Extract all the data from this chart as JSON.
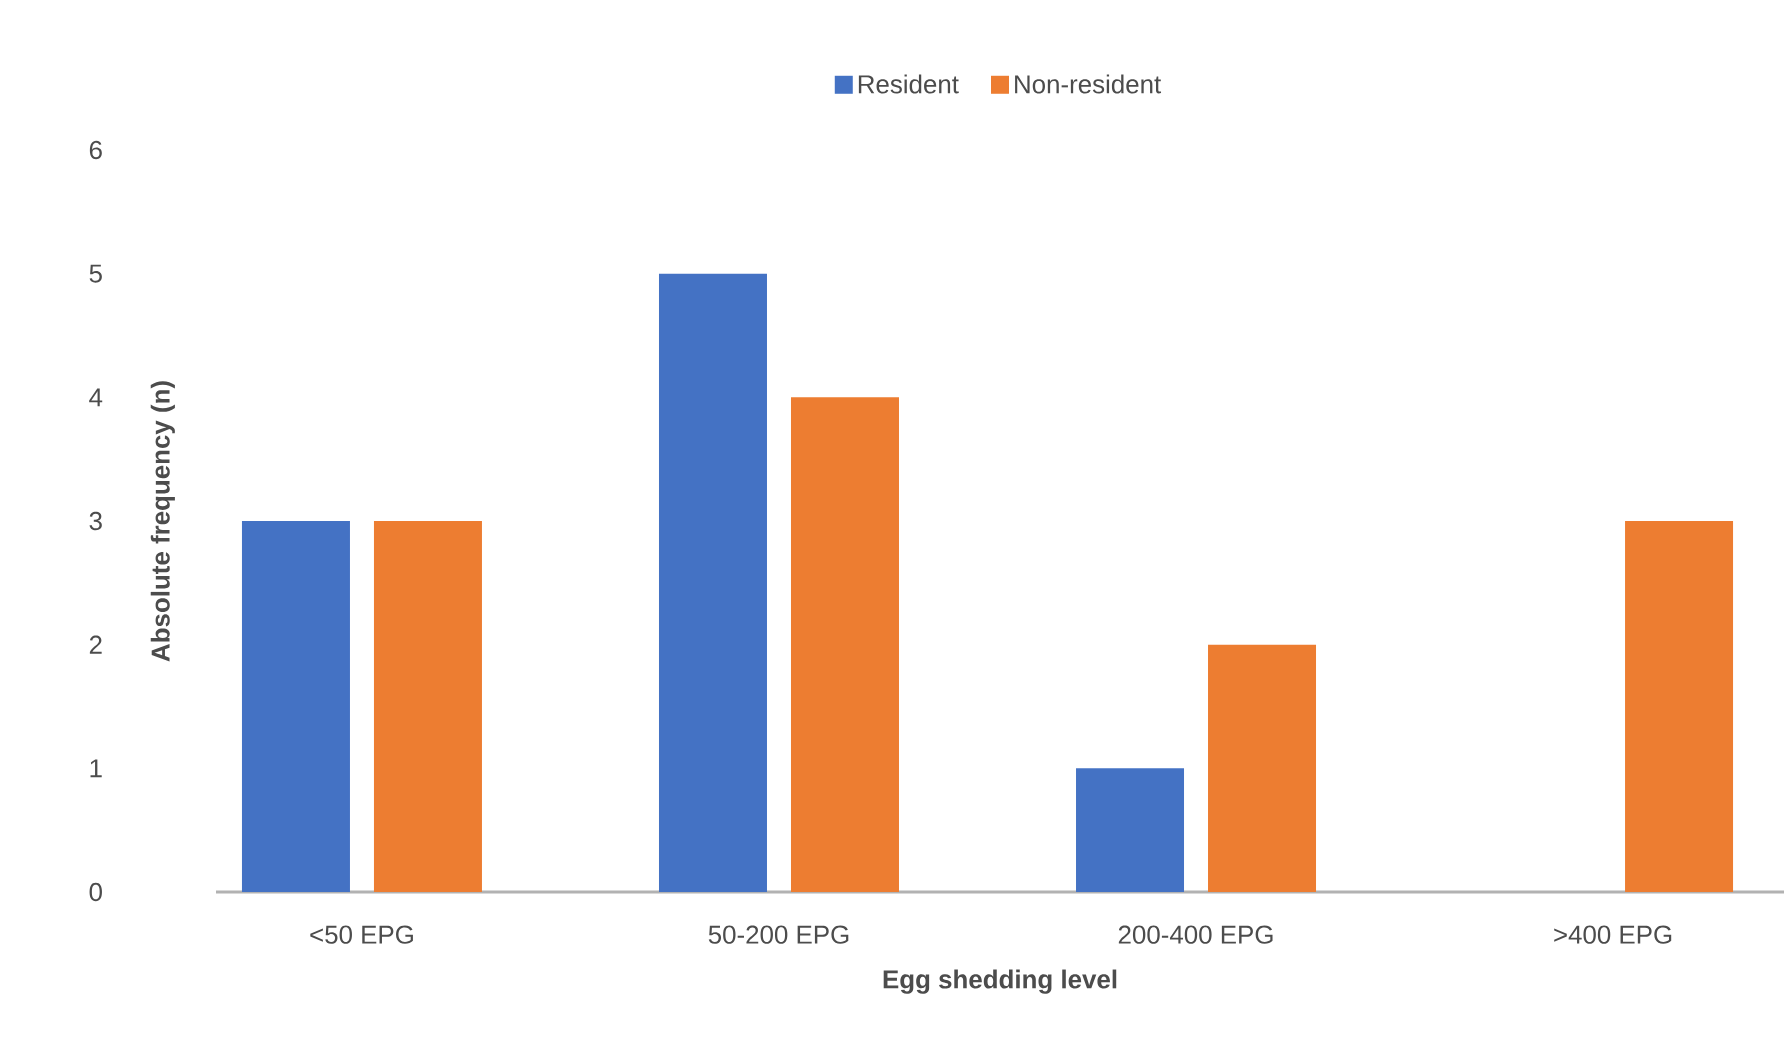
{
  "chart_data": {
    "type": "bar",
    "xlabel": "Egg shedding level",
    "ylabel": "Absolute frequency (n)",
    "categories": [
      "<50 EPG",
      "50-200 EPG",
      "200-400 EPG",
      ">400 EPG"
    ],
    "series": [
      {
        "name": "Resident",
        "color": "#4472c4",
        "values": [
          3,
          5,
          1,
          0
        ]
      },
      {
        "name": "Non-resident",
        "color": "#ed7d31",
        "values": [
          3,
          4,
          2,
          3
        ]
      }
    ],
    "ylim": [
      0,
      6
    ],
    "yticks": [
      0,
      1,
      2,
      3,
      4,
      5,
      6
    ],
    "legend": "top"
  }
}
